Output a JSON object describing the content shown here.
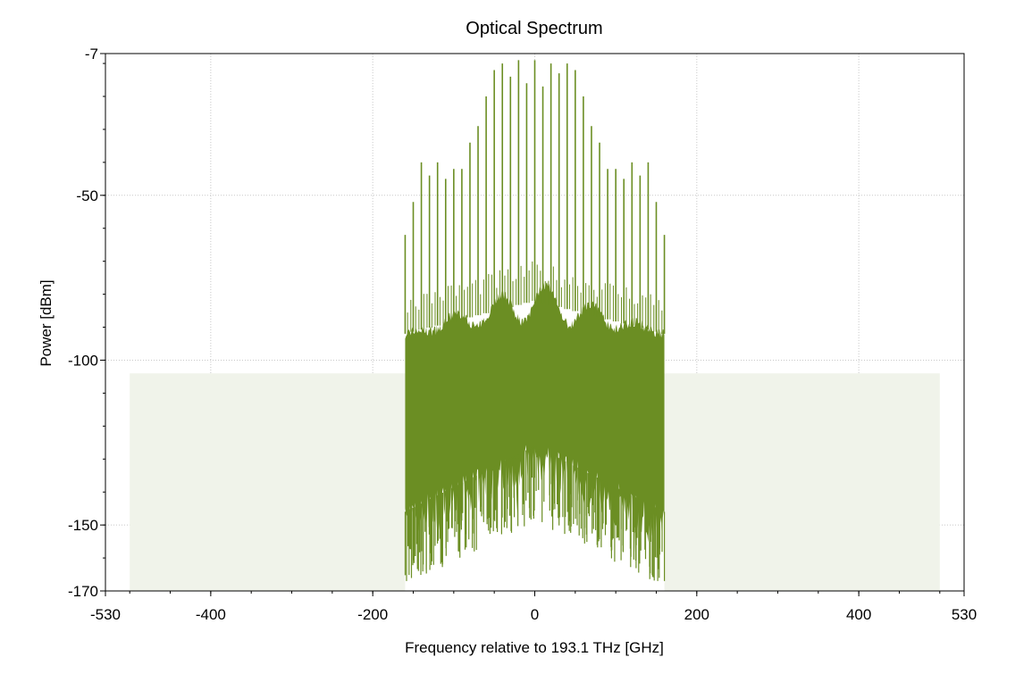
{
  "chart_data": {
    "type": "line",
    "title": "Optical Spectrum",
    "xlabel": "Frequency relative to 193.1 THz [GHz]",
    "ylabel": "Power [dBm]",
    "xlim": [
      -530,
      530
    ],
    "ylim": [
      -170,
      -7
    ],
    "x_ticks": [
      -530,
      -400,
      -200,
      0,
      200,
      400,
      530
    ],
    "x_tick_labels": [
      "-530",
      "-400",
      "-200",
      "0",
      "200",
      "400",
      "530"
    ],
    "y_ticks": [
      -7,
      -50,
      -100,
      -150,
      -170
    ],
    "y_tick_labels": [
      "-7",
      "-50",
      "-100",
      "-150",
      "-170"
    ],
    "grid": true,
    "colors": {
      "signal": "#6b8e23",
      "noise_floor": "#f0f3ea",
      "axis": "#000000",
      "grid": "#c8c8c8"
    },
    "noise_floor": {
      "x_start": -500,
      "x_end": 500,
      "power_dbm": -104
    },
    "signal_band": {
      "x_start": -160,
      "x_end": 160,
      "upper_envelope_dbm": -92,
      "lower_envelope_dbm": -150
    },
    "series": [
      {
        "type": "line",
        "x": [
          -160,
          -150,
          -140,
          -130,
          -120,
          -110,
          -100,
          -90,
          -80,
          -70,
          -60,
          -50,
          -40,
          -30,
          -20,
          -10,
          0,
          10,
          20,
          30,
          40,
          50,
          60,
          70,
          80,
          90,
          100,
          110,
          120,
          130,
          140,
          150,
          160
        ],
        "values": [
          -62,
          -52,
          -40,
          -44,
          -40,
          -45,
          -42,
          -42,
          -34,
          -29,
          -20,
          -12,
          -10,
          -14,
          -9,
          -16,
          -9,
          -17,
          -10,
          -13,
          -10,
          -12,
          -20,
          -29,
          -34,
          -42,
          -42,
          -45,
          -40,
          -44,
          -40,
          -52,
          -62
        ]
      }
    ]
  }
}
